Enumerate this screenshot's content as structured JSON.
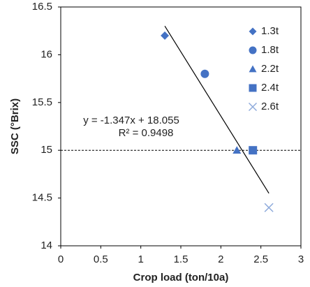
{
  "chart_data": {
    "type": "scatter",
    "x_label": "Crop load (ton/10a)",
    "y_label": "SSC (°Brix)",
    "annotations": [
      "y = -1.347x + 18.055",
      "R² = 0.9498"
    ],
    "series": [
      {
        "name": "1.3t",
        "color": "#4472c4",
        "marker": "diamond",
        "x": [
          1.3
        ],
        "values": [
          16.2
        ]
      },
      {
        "name": "1.8t",
        "color": "#4472c4",
        "marker": "circle",
        "x": [
          1.8
        ],
        "values": [
          15.8
        ]
      },
      {
        "name": "2.2t",
        "color": "#4472c4",
        "marker": "triangle",
        "x": [
          2.2
        ],
        "values": [
          15.0
        ]
      },
      {
        "name": "2.4t",
        "color": "#4472c4",
        "marker": "square",
        "x": [
          2.4
        ],
        "values": [
          15.0
        ]
      },
      {
        "name": "2.6t",
        "color": "#8eaadb",
        "marker": "cross",
        "x": [
          2.6
        ],
        "values": [
          14.4
        ]
      }
    ],
    "trendline": {
      "x": [
        1.3,
        2.6
      ],
      "y": [
        16.3,
        14.55
      ],
      "color": "#000000"
    },
    "reference_line": 15,
    "xlim": [
      0,
      3
    ],
    "xticks": [
      0,
      0.5,
      1,
      1.5,
      2,
      2.5,
      3
    ],
    "ylim": [
      14,
      16.5
    ],
    "yticks": [
      14,
      14.5,
      15,
      15.5,
      16,
      16.5
    ],
    "legend": "right"
  }
}
